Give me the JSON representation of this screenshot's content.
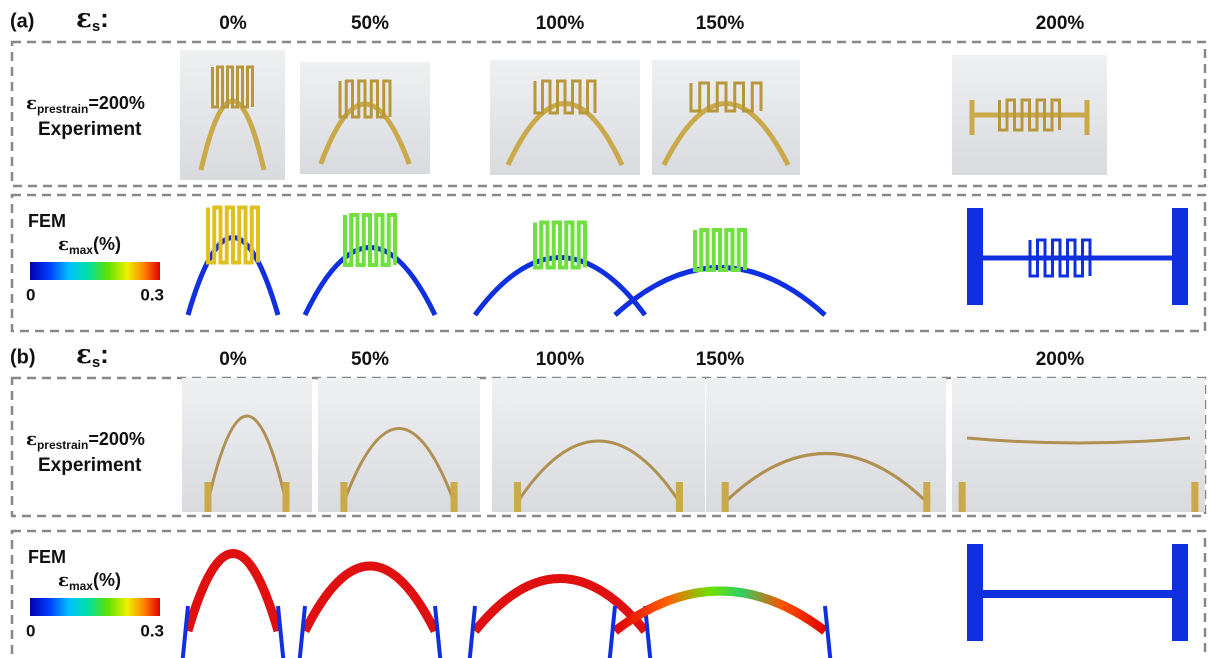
{
  "panels": [
    {
      "label": "(a)",
      "strain_symbol": "ε",
      "strain_subscript": "s",
      "strain_suffix": ":",
      "strains": [
        "0%",
        "50%",
        "100%",
        "150%",
        "200%"
      ],
      "experiment": {
        "symbol": "ε",
        "subscript": "prestrain",
        "suffix": "=200%",
        "label": "Experiment"
      },
      "fem": {
        "label": "FEM",
        "colorbar": {
          "symbol": "ε",
          "subscript": "max",
          "suffix": "(%)",
          "min": 0,
          "max": 0.3
        }
      }
    },
    {
      "label": "(b)",
      "strain_symbol": "ε",
      "strain_subscript": "s",
      "strain_suffix": ":",
      "strains": [
        "0%",
        "50%",
        "100%",
        "150%",
        "200%"
      ],
      "experiment": {
        "symbol": "ε",
        "subscript": "prestrain",
        "suffix": "=200%",
        "label": "Experiment"
      },
      "fem": {
        "label": "FEM",
        "colorbar": {
          "symbol": "ε",
          "subscript": "max",
          "suffix": "(%)",
          "min": 0,
          "max": 0.3
        }
      }
    }
  ]
}
